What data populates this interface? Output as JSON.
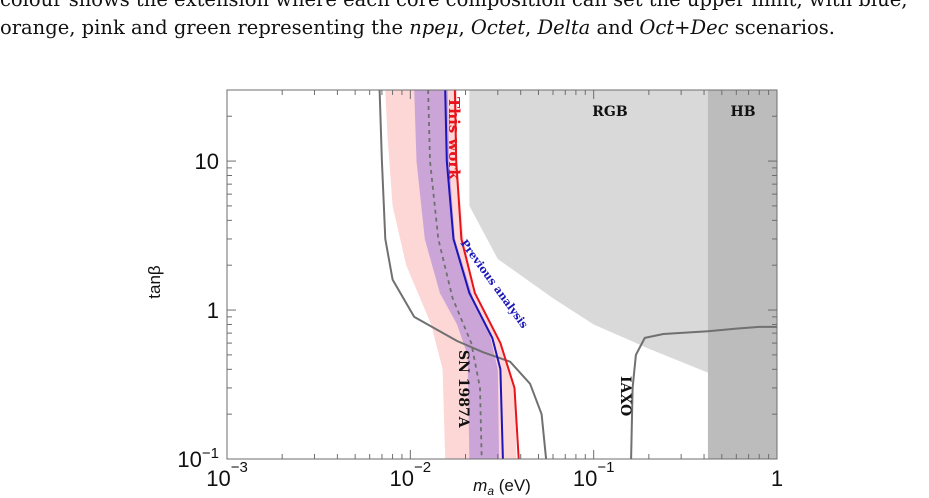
{
  "caption": {
    "line1": "colour shows the extension where each core composition can set the upper limit, with blue,",
    "line2_pre": "orange, pink and green representing the ",
    "s1": "npeμ",
    "sep1": ", ",
    "s2": "Octet",
    "sep2": ", ",
    "s3": "Delta",
    "sep3": " and ",
    "s4": "Oct+Dec",
    "line2_post": " scenarios."
  },
  "chart_data": {
    "type": "line",
    "xlabel_main": "m",
    "xlabel_sub": "a",
    "xlabel_unit": " (eV)",
    "ylabel": "tanβ",
    "x_scale": "log",
    "y_scale": "log",
    "xlim": [
      0.001,
      1
    ],
    "ylim": [
      0.1,
      30
    ],
    "x_ticks": [
      {
        "value": 0.001,
        "base": "10",
        "exp": "−3"
      },
      {
        "value": 0.01,
        "base": "10",
        "exp": "−2"
      },
      {
        "value": 0.1,
        "base": "10",
        "exp": "−1"
      },
      {
        "value": 1,
        "base": "1",
        "exp": ""
      }
    ],
    "y_ticks": [
      {
        "value": 0.1,
        "base": "10",
        "exp": "−1"
      },
      {
        "value": 1,
        "base": "1",
        "exp": ""
      },
      {
        "value": 10,
        "base": "10",
        "exp": ""
      }
    ],
    "colors": {
      "rgb": "#d9d9d9",
      "hb": "#bcbcbc",
      "pink": "#fdd6d6",
      "purple": "#cba5d8",
      "red": "#e8141b",
      "blue": "#1a16b8",
      "gray": "#707070"
    },
    "regions": {
      "rgb": {
        "label": "RGB",
        "x_min": 0.021,
        "lower_boundary": [
          [
            0.021,
            5.0
          ],
          [
            0.03,
            2.2
          ],
          [
            0.06,
            1.2
          ],
          [
            0.1,
            0.8
          ],
          [
            0.2,
            0.55
          ],
          [
            0.42,
            0.38
          ],
          [
            1.0,
            0.2
          ]
        ]
      },
      "hb": {
        "label": "HB",
        "x_min": 0.42
      }
    },
    "bands": {
      "pink": {
        "left": [
          [
            0.0073,
            30
          ],
          [
            0.0075,
            15
          ],
          [
            0.008,
            5
          ],
          [
            0.0095,
            2
          ],
          [
            0.013,
            0.8
          ],
          [
            0.015,
            0.4
          ],
          [
            0.0155,
            0.1
          ]
        ],
        "right": [
          [
            0.018,
            30
          ],
          [
            0.018,
            10
          ],
          [
            0.0195,
            3
          ],
          [
            0.023,
            1.2
          ],
          [
            0.031,
            0.6
          ],
          [
            0.037,
            0.3
          ],
          [
            0.038,
            0.1
          ]
        ]
      },
      "purple": {
        "left": [
          [
            0.0105,
            30
          ],
          [
            0.0108,
            10
          ],
          [
            0.012,
            3
          ],
          [
            0.0145,
            1.3
          ],
          [
            0.018,
            0.8
          ],
          [
            0.0205,
            0.5
          ],
          [
            0.021,
            0.1
          ]
        ],
        "right": [
          [
            0.016,
            30
          ],
          [
            0.0163,
            10
          ],
          [
            0.0175,
            3
          ],
          [
            0.022,
            1.2
          ],
          [
            0.027,
            0.7
          ],
          [
            0.03,
            0.4
          ],
          [
            0.0305,
            0.1
          ]
        ]
      }
    },
    "series": [
      {
        "name": "This work",
        "points": [
          [
            0.0175,
            30
          ],
          [
            0.0178,
            10
          ],
          [
            0.019,
            3
          ],
          [
            0.0225,
            1.3
          ],
          [
            0.031,
            0.6
          ],
          [
            0.037,
            0.3
          ],
          [
            0.039,
            0.1
          ]
        ]
      },
      {
        "name": "Previous analysis",
        "points": [
          [
            0.0155,
            30
          ],
          [
            0.0158,
            10
          ],
          [
            0.0172,
            3
          ],
          [
            0.021,
            1.3
          ],
          [
            0.028,
            0.65
          ],
          [
            0.031,
            0.4
          ],
          [
            0.032,
            0.1
          ]
        ]
      },
      {
        "name": "",
        "points": [
          [
            0.0125,
            30
          ],
          [
            0.0128,
            10
          ],
          [
            0.0142,
            3
          ],
          [
            0.017,
            1.2
          ],
          [
            0.0215,
            0.6
          ],
          [
            0.024,
            0.3
          ],
          [
            0.0245,
            0.1
          ]
        ]
      },
      {
        "name": "SN 1987A",
        "points": [
          [
            0.0068,
            30
          ],
          [
            0.007,
            10
          ],
          [
            0.0073,
            3
          ],
          [
            0.008,
            1.6
          ],
          [
            0.0105,
            0.9
          ],
          [
            0.018,
            0.62
          ],
          [
            0.025,
            0.52
          ],
          [
            0.035,
            0.45
          ],
          [
            0.045,
            0.32
          ],
          [
            0.052,
            0.2
          ],
          [
            0.055,
            0.1
          ]
        ]
      },
      {
        "name": "IAXO",
        "points": [
          [
            0.16,
            0.1
          ],
          [
            0.163,
            0.3
          ],
          [
            0.17,
            0.5
          ],
          [
            0.19,
            0.65
          ],
          [
            0.24,
            0.69
          ],
          [
            0.42,
            0.72
          ],
          [
            0.6,
            0.75
          ],
          [
            0.8,
            0.77
          ],
          [
            1.0,
            0.77
          ]
        ]
      }
    ],
    "annotations": {
      "this_work": "This work",
      "previous": "Previous analysis",
      "sn": "SN 1987A",
      "iaxo": "IAXO"
    }
  }
}
